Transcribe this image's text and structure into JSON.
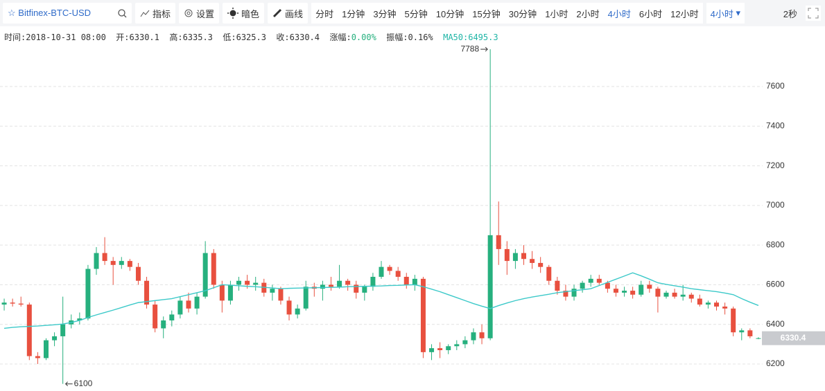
{
  "toolbar": {
    "symbol": "Bitfinex-BTC-USD",
    "buttons": [
      "指标",
      "设置",
      "暗色",
      "画线"
    ],
    "periods": [
      "分时",
      "1分钟",
      "3分钟",
      "5分钟",
      "10分钟",
      "15分钟",
      "30分钟",
      "1小时",
      "2小时",
      "4小时",
      "6小时",
      "12小时"
    ],
    "period_select": "4小时",
    "refresh": "2秒"
  },
  "info": {
    "time_label": "时间:",
    "time": "2018-10-31 08:00",
    "open_label": "开:",
    "high_label": "高:",
    "low_label": "低:",
    "close_label": "收:",
    "change_label": "涨幅:",
    "change": "0.00%",
    "amplitude_label": "振幅:",
    "amplitude": "0.16%",
    "ma_label": "MA50:"
  },
  "chart_data": {
    "type": "candlestick",
    "up_color": "#26b07e",
    "down_color": "#e8503f",
    "grid": true,
    "ylim": [
      6064,
      7820
    ],
    "yticks": [
      6200,
      6400,
      6600,
      6800,
      7000,
      7200,
      7400,
      7600
    ],
    "open": [
      6500,
      6510,
      6505,
      6500,
      6240,
      6230,
      6320,
      6340,
      6400,
      6420,
      6430,
      6680,
      6760,
      6720,
      6700,
      6720,
      6690,
      6620,
      6500,
      6380,
      6420,
      6450,
      6520,
      6480,
      6540,
      6760,
      6600,
      6520,
      6600,
      6620,
      6600,
      6610,
      6560,
      6580,
      6520,
      6450,
      6480,
      6590,
      6580,
      6600,
      6590,
      6620,
      6600,
      6560,
      6590,
      6640,
      6690,
      6670,
      6640,
      6600,
      6630,
      6260,
      6280,
      6270,
      6290,
      6300,
      6320,
      6360,
      6330,
      6850,
      6780,
      6720,
      6760,
      6730,
      6710,
      6690,
      6620,
      6570,
      6540,
      6580,
      6610,
      6630,
      6610,
      6580,
      6560,
      6570,
      6550,
      6600,
      6580,
      6540,
      6560,
      6540,
      6550,
      6530,
      6500,
      6510,
      6490,
      6480,
      6360,
      6370,
      6330.1
    ],
    "high": [
      6530,
      6530,
      6540,
      6510,
      6260,
      6330,
      6360,
      6540,
      6450,
      6460,
      6700,
      6790,
      6840,
      6740,
      6740,
      6730,
      6710,
      6640,
      6520,
      6440,
      6470,
      6540,
      6560,
      6560,
      6820,
      6780,
      6620,
      6620,
      6640,
      6650,
      6640,
      6630,
      6600,
      6590,
      6540,
      6500,
      6620,
      6610,
      6620,
      6640,
      6700,
      6630,
      6620,
      6600,
      6660,
      6720,
      6700,
      6690,
      6660,
      6650,
      6640,
      6300,
      6310,
      6300,
      6320,
      6340,
      6380,
      6400,
      7788,
      7020,
      6820,
      6780,
      6800,
      6770,
      6740,
      6700,
      6640,
      6600,
      6600,
      6620,
      6650,
      6650,
      6620,
      6600,
      6590,
      6590,
      6620,
      6620,
      6590,
      6570,
      6580,
      6600,
      6560,
      6550,
      6520,
      6520,
      6510,
      6490,
      6380,
      6380,
      6335.3
    ],
    "low": [
      6470,
      6490,
      6490,
      6220,
      6200,
      6220,
      6290,
      6100,
      6380,
      6400,
      6420,
      6650,
      6700,
      6600,
      6680,
      6670,
      6600,
      6480,
      6360,
      6330,
      6390,
      6430,
      6460,
      6450,
      6530,
      6580,
      6460,
      6500,
      6570,
      6580,
      6570,
      6540,
      6520,
      6500,
      6420,
      6430,
      6470,
      6540,
      6520,
      6570,
      6580,
      6570,
      6530,
      6520,
      6570,
      6630,
      6650,
      6620,
      6580,
      6570,
      6230,
      6220,
      6230,
      6250,
      6270,
      6280,
      6300,
      6300,
      6320,
      6700,
      6650,
      6680,
      6700,
      6680,
      6660,
      6600,
      6550,
      6520,
      6520,
      6560,
      6590,
      6600,
      6560,
      6540,
      6540,
      6530,
      6540,
      6560,
      6460,
      6530,
      6530,
      6520,
      6510,
      6490,
      6480,
      6470,
      6450,
      6340,
      6320,
      6330,
      6325.3
    ],
    "close": [
      6510,
      6505,
      6500,
      6240,
      6230,
      6320,
      6340,
      6400,
      6420,
      6430,
      6680,
      6760,
      6720,
      6700,
      6720,
      6690,
      6620,
      6500,
      6380,
      6420,
      6450,
      6520,
      6480,
      6540,
      6760,
      6600,
      6520,
      6600,
      6620,
      6600,
      6610,
      6560,
      6580,
      6520,
      6450,
      6480,
      6590,
      6580,
      6600,
      6590,
      6620,
      6600,
      6560,
      6590,
      6640,
      6690,
      6670,
      6640,
      6600,
      6630,
      6260,
      6280,
      6270,
      6290,
      6300,
      6320,
      6360,
      6330,
      6850,
      6780,
      6720,
      6760,
      6730,
      6710,
      6690,
      6620,
      6570,
      6540,
      6580,
      6610,
      6630,
      6610,
      6580,
      6560,
      6570,
      6550,
      6600,
      6580,
      6540,
      6560,
      6540,
      6550,
      6530,
      6500,
      6510,
      6490,
      6480,
      6360,
      6370,
      6340,
      6330.4
    ],
    "ma50": {
      "color": "#3cc9c9",
      "values": [
        6380,
        6385,
        6388,
        6390,
        6392,
        6395,
        6398,
        6402,
        6410,
        6420,
        6435,
        6448,
        6460,
        6472,
        6485,
        6498,
        6510,
        6515,
        6520,
        6525,
        6530,
        6540,
        6550,
        6560,
        6570,
        6585,
        6600,
        6598,
        6595,
        6592,
        6590,
        6587,
        6584,
        6580,
        6582,
        6583,
        6584,
        6585,
        6586,
        6587,
        6588,
        6590,
        6591,
        6592,
        6593,
        6594,
        6596,
        6597,
        6599,
        6600,
        6590,
        6578,
        6565,
        6550,
        6535,
        6520,
        6505,
        6492,
        6480,
        6495,
        6508,
        6520,
        6530,
        6538,
        6545,
        6552,
        6560,
        6565,
        6570,
        6575,
        6580,
        6596,
        6612,
        6628,
        6644,
        6660,
        6645,
        6628,
        6610,
        6602,
        6595,
        6588,
        6580,
        6575,
        6570,
        6565,
        6558,
        6550,
        6530,
        6512,
        6495.3
      ]
    }
  }
}
